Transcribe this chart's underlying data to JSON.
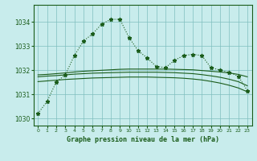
{
  "title": "Graphe pression niveau de la mer (hPa)",
  "bg_color": "#c8ecec",
  "grid_color": "#7fbfbf",
  "line_color": "#1a5c1a",
  "xlim": [
    -0.5,
    23.5
  ],
  "ylim": [
    1029.7,
    1034.7
  ],
  "yticks": [
    1030,
    1031,
    1032,
    1033,
    1034
  ],
  "xticks": [
    0,
    1,
    2,
    3,
    4,
    5,
    6,
    7,
    8,
    9,
    10,
    11,
    12,
    13,
    14,
    15,
    16,
    17,
    18,
    19,
    20,
    21,
    22,
    23
  ],
  "main_line": [
    1030.2,
    1030.7,
    1031.5,
    1031.8,
    1032.6,
    1033.2,
    1033.5,
    1033.9,
    1034.1,
    1034.1,
    1033.35,
    1032.8,
    1032.5,
    1032.15,
    1032.1,
    1032.4,
    1032.6,
    1032.65,
    1032.6,
    1032.1,
    1032.0,
    1031.9,
    1031.75,
    1031.15
  ],
  "flat_line1": [
    1031.8,
    1031.82,
    1031.85,
    1031.88,
    1031.92,
    1031.95,
    1031.97,
    1031.99,
    1032.01,
    1032.03,
    1032.04,
    1032.04,
    1032.04,
    1032.04,
    1032.04,
    1032.03,
    1032.02,
    1032.01,
    1031.98,
    1031.95,
    1031.92,
    1031.88,
    1031.82,
    1031.72
  ],
  "flat_line2": [
    1031.72,
    1031.75,
    1031.77,
    1031.8,
    1031.83,
    1031.85,
    1031.87,
    1031.88,
    1031.89,
    1031.9,
    1031.91,
    1031.91,
    1031.91,
    1031.91,
    1031.9,
    1031.89,
    1031.87,
    1031.85,
    1031.81,
    1031.76,
    1031.7,
    1031.62,
    1031.52,
    1031.35
  ],
  "flat_line3": [
    1031.52,
    1031.55,
    1031.58,
    1031.61,
    1031.63,
    1031.65,
    1031.67,
    1031.68,
    1031.69,
    1031.7,
    1031.71,
    1031.71,
    1031.71,
    1031.7,
    1031.69,
    1031.68,
    1031.66,
    1031.63,
    1031.59,
    1031.53,
    1031.46,
    1031.37,
    1031.26,
    1031.1
  ]
}
